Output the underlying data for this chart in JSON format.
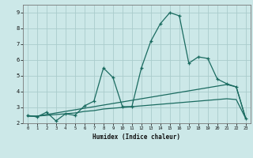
{
  "xlabel": "Humidex (Indice chaleur)",
  "background_color": "#cce8e8",
  "grid_color": "#aacccc",
  "line_color": "#1a6b60",
  "xlim": [
    -0.5,
    23.5
  ],
  "ylim": [
    2,
    9.5
  ],
  "xticks": [
    0,
    1,
    2,
    3,
    4,
    5,
    6,
    7,
    8,
    9,
    10,
    11,
    12,
    13,
    14,
    15,
    16,
    17,
    18,
    19,
    20,
    21,
    22,
    23
  ],
  "yticks": [
    2,
    3,
    4,
    5,
    6,
    7,
    8,
    9
  ],
  "line1_x": [
    0,
    1,
    2,
    3,
    4,
    5,
    6,
    7,
    8,
    9,
    10,
    11,
    12,
    13,
    14,
    15,
    16,
    17,
    18,
    19,
    20,
    21,
    22,
    23
  ],
  "line1_y": [
    2.5,
    2.4,
    2.7,
    2.15,
    2.6,
    2.5,
    3.1,
    3.4,
    5.5,
    4.9,
    3.05,
    3.05,
    5.5,
    7.2,
    8.3,
    9.0,
    8.8,
    5.8,
    6.2,
    6.1,
    4.8,
    4.5,
    4.3,
    2.3
  ],
  "line2_x": [
    0,
    1,
    2,
    3,
    4,
    5,
    6,
    7,
    8,
    9,
    10,
    11,
    12,
    13,
    14,
    15,
    16,
    17,
    18,
    19,
    20,
    21,
    22,
    23
  ],
  "line2_y": [
    2.45,
    2.45,
    2.55,
    2.65,
    2.75,
    2.85,
    2.95,
    3.05,
    3.15,
    3.25,
    3.35,
    3.45,
    3.55,
    3.65,
    3.75,
    3.85,
    3.95,
    4.05,
    4.15,
    4.25,
    4.35,
    4.45,
    4.3,
    2.3
  ],
  "line3_x": [
    0,
    1,
    2,
    3,
    4,
    5,
    6,
    7,
    8,
    9,
    10,
    11,
    12,
    13,
    14,
    15,
    16,
    17,
    18,
    19,
    20,
    21,
    22,
    23
  ],
  "line3_y": [
    2.45,
    2.45,
    2.5,
    2.55,
    2.6,
    2.65,
    2.75,
    2.8,
    2.9,
    2.95,
    3.0,
    3.05,
    3.1,
    3.15,
    3.2,
    3.25,
    3.3,
    3.35,
    3.4,
    3.45,
    3.5,
    3.55,
    3.5,
    2.3
  ]
}
